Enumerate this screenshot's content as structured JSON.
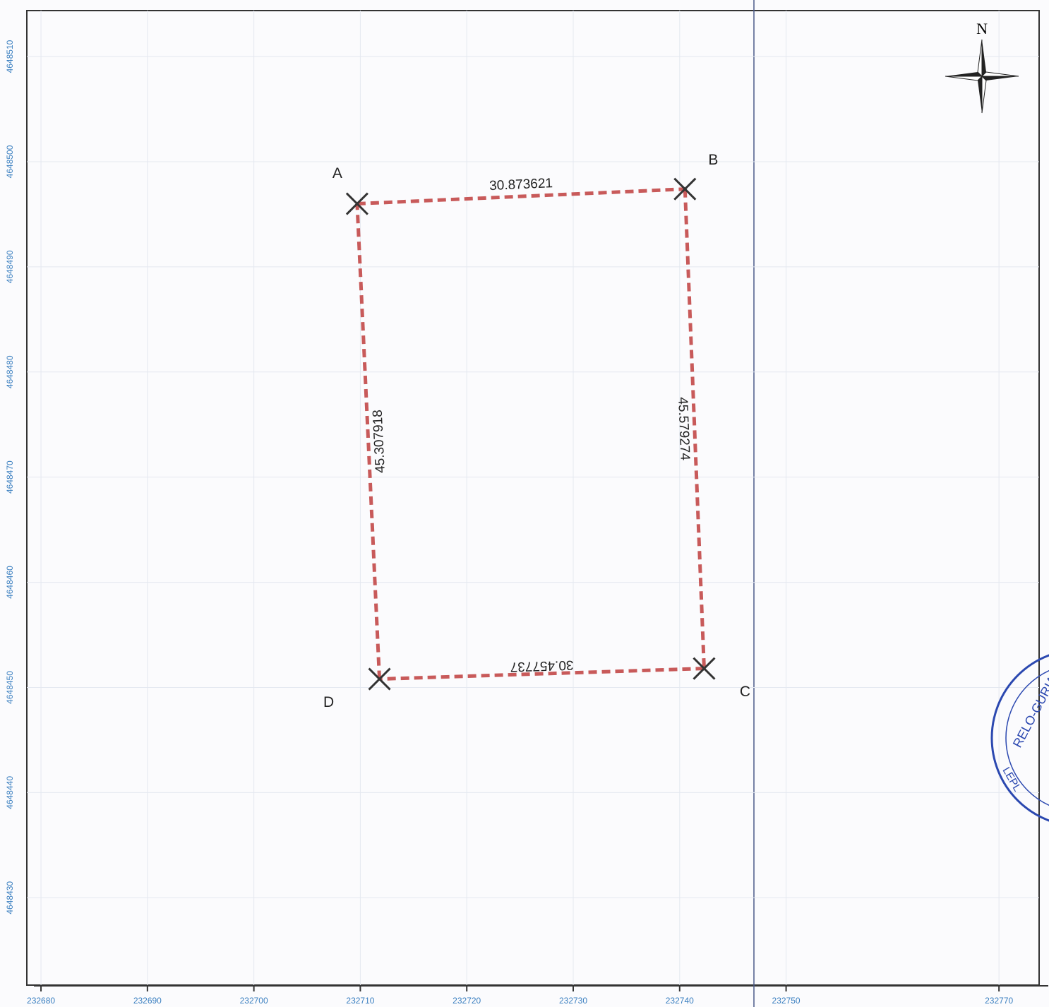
{
  "map": {
    "xlim": [
      232678.67,
      232773.77
    ],
    "ylim": [
      4648421.69,
      4648514.37
    ],
    "xticks": [
      232680,
      232690,
      232700,
      232710,
      232720,
      232730,
      232740,
      232750,
      232770
    ],
    "yticks": [
      4648510,
      4648500,
      4648490,
      4648480,
      4648470,
      4648460,
      4648450,
      4648440,
      4648430
    ],
    "north": "N",
    "points": [
      {
        "label": "A",
        "x": 232709.7,
        "y": 4648496.0
      },
      {
        "label": "B",
        "x": 232740.5,
        "y": 4648497.4
      },
      {
        "label": "C",
        "x": 232742.3,
        "y": 4648451.8
      },
      {
        "label": "D",
        "x": 232711.8,
        "y": 4648450.8
      }
    ],
    "edges": [
      {
        "from": 0,
        "to": 1,
        "length": 30.873621
      },
      {
        "from": 1,
        "to": 2,
        "length": 45.579274
      },
      {
        "from": 2,
        "to": 3,
        "length": 30.457737
      },
      {
        "from": 3,
        "to": 0,
        "length": 45.307918
      }
    ],
    "stamp": [
      "RELO-GURIA",
      "LEPL"
    ]
  }
}
